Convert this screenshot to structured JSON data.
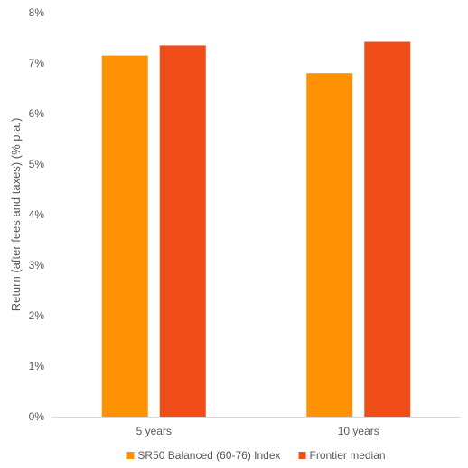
{
  "chart_data": {
    "type": "bar",
    "categories": [
      "5 years",
      "10 years"
    ],
    "series": [
      {
        "name": "SR50 Balanced (60-76) Index",
        "values": [
          7.15,
          6.8
        ],
        "color": "#FF9105"
      },
      {
        "name": "Frontier median",
        "values": [
          7.35,
          7.42
        ],
        "color": "#F04E19"
      }
    ],
    "xlabel": "",
    "ylabel": "Return (after fees and taxes) (% p.a.)",
    "ylim": [
      0,
      8
    ],
    "yticks": [
      0,
      1,
      2,
      3,
      4,
      5,
      6,
      7,
      8
    ],
    "ytick_labels": [
      "0%",
      "1%",
      "2%",
      "3%",
      "4%",
      "5%",
      "6%",
      "7%",
      "8%"
    ],
    "grid": false,
    "legend_position": "bottom"
  }
}
